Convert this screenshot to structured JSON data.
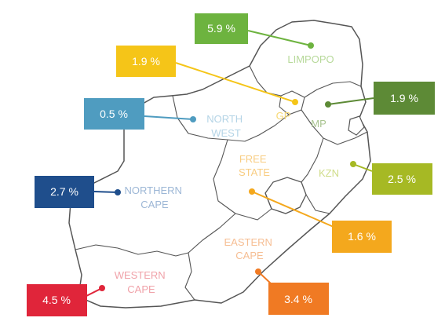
{
  "map": {
    "regions": [
      {
        "id": "limpopo",
        "lines": [
          "LIMPOPO"
        ],
        "value": "5.9 %",
        "color": "#6db33f",
        "label_color": "#b7d99a"
      },
      {
        "id": "gauteng",
        "lines": [
          "GP"
        ],
        "value": "1.9 %",
        "color": "#f5c518",
        "label_color": "#f7d873"
      },
      {
        "id": "mpumalanga",
        "lines": [
          "MP"
        ],
        "value": "1.9 %",
        "color": "#5d8a36",
        "label_color": "#a9c490"
      },
      {
        "id": "north-west",
        "lines": [
          "NORTH",
          "WEST"
        ],
        "value": "0.5 %",
        "color": "#4f9cc0",
        "label_color": "#b4d4e6"
      },
      {
        "id": "kwazulu-natal",
        "lines": [
          "KZN"
        ],
        "value": "2.5 %",
        "color": "#a6b924",
        "label_color": "#cfdc88"
      },
      {
        "id": "free-state",
        "lines": [
          "FREE",
          "STATE"
        ],
        "value": "1.6 %",
        "color": "#f4a81d",
        "label_color": "#f8cd83"
      },
      {
        "id": "northern-cape",
        "lines": [
          "NORTHERN",
          "CAPE"
        ],
        "value": "2.7 %",
        "color": "#1f4e8c",
        "label_color": "#9db7d6"
      },
      {
        "id": "eastern-cape",
        "lines": [
          "EASTERN",
          "CAPE"
        ],
        "value": "3.4 %",
        "color": "#f07a23",
        "label_color": "#f6be93"
      },
      {
        "id": "western-cape",
        "lines": [
          "WESTERN",
          "CAPE"
        ],
        "value": "4.5 %",
        "color": "#e0253a",
        "label_color": "#f0a2a9"
      }
    ]
  }
}
